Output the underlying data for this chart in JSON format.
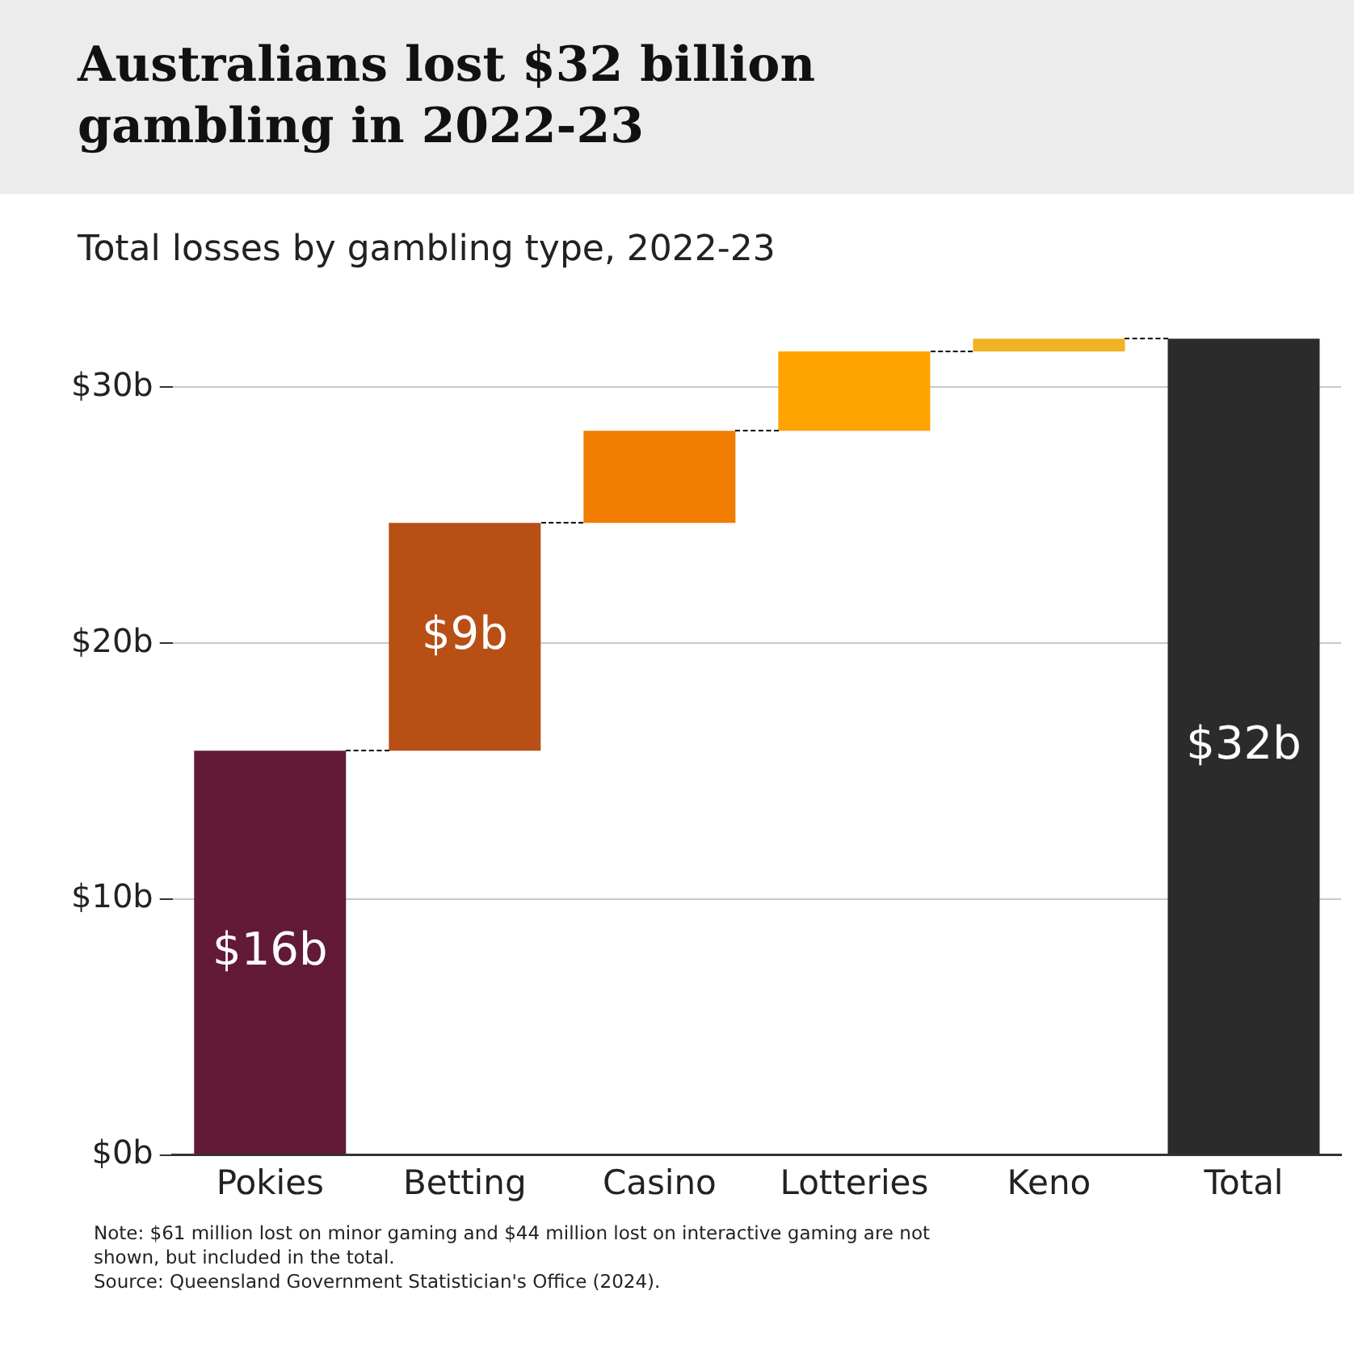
{
  "chart_data": {
    "type": "bar",
    "title": "Australians lost $32 billion gambling in 2022-23",
    "subtitle": "Total losses by gambling type, 2022-23",
    "categories": [
      "Pokies",
      "Betting",
      "Casino",
      "Lotteries",
      "Keno",
      "Total"
    ],
    "values": [
      15.8,
      8.9,
      3.6,
      3.1,
      0.5,
      31.9
    ],
    "base": [
      0,
      15.8,
      24.7,
      28.3,
      31.4,
      0
    ],
    "colors": [
      "#621a36",
      "#b84f15",
      "#f07c00",
      "#ffa300",
      "#f2b226",
      "#2b2b2b"
    ],
    "value_labels": [
      "$16b",
      "$9b",
      null,
      null,
      null,
      "$32b"
    ],
    "ylim": [
      0,
      32
    ],
    "yticks": [
      {
        "value": 0,
        "label": "$0b"
      },
      {
        "value": 10,
        "label": "$10b"
      },
      {
        "value": 20,
        "label": "$20b"
      },
      {
        "value": 30,
        "label": "$30b"
      }
    ],
    "grid": "y",
    "annotations": [
      "Note:   $61 million lost on minor gaming and $44 million lost on interactive gaming are not shown, but included in the total.",
      "Source: Queensland Government Statistician's Office (2024)."
    ]
  }
}
